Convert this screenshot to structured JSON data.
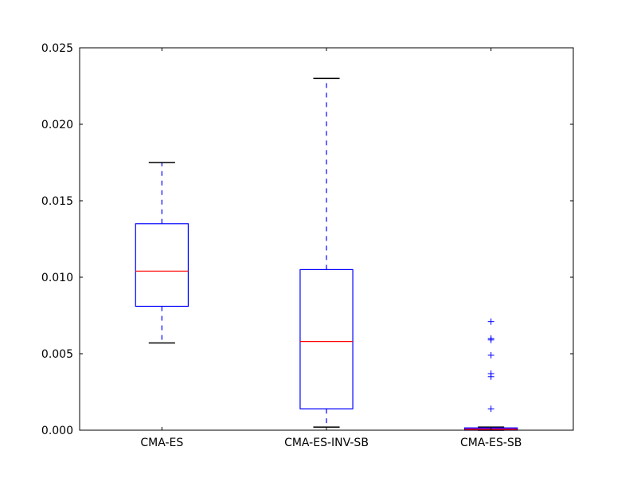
{
  "chart_data": {
    "type": "box",
    "title": "",
    "xlabel": "",
    "ylabel": "",
    "categories": [
      "CMA-ES",
      "CMA-ES-INV-SB",
      "CMA-ES-SB"
    ],
    "ylim": [
      0,
      0.025
    ],
    "yticks": [
      0.0,
      0.005,
      0.01,
      0.015,
      0.02,
      0.025
    ],
    "ytick_labels": [
      "0.000",
      "0.005",
      "0.010",
      "0.015",
      "0.020",
      "0.025"
    ],
    "grid": false,
    "boxes": [
      {
        "category": "CMA-ES",
        "whisker_low": 0.0057,
        "q1": 0.0081,
        "median": 0.0104,
        "q3": 0.0135,
        "whisker_high": 0.0175,
        "outliers": []
      },
      {
        "category": "CMA-ES-INV-SB",
        "whisker_low": 0.0002,
        "q1": 0.0014,
        "median": 0.0058,
        "q3": 0.0105,
        "whisker_high": 0.023,
        "outliers": []
      },
      {
        "category": "CMA-ES-SB",
        "whisker_low": 0.0,
        "q1": 0.0,
        "median": 5e-05,
        "q3": 0.00015,
        "whisker_high": 0.0002,
        "outliers": [
          0.0014,
          0.0035,
          0.0037,
          0.0049,
          0.0059,
          0.006,
          0.0071
        ]
      }
    ]
  },
  "colors": {
    "box": "#0000ff",
    "median": "#ff0000",
    "cap": "#000000",
    "outlier": "#0000ff",
    "axes": "#000000",
    "sb_box_fill": "#bf00bf"
  }
}
